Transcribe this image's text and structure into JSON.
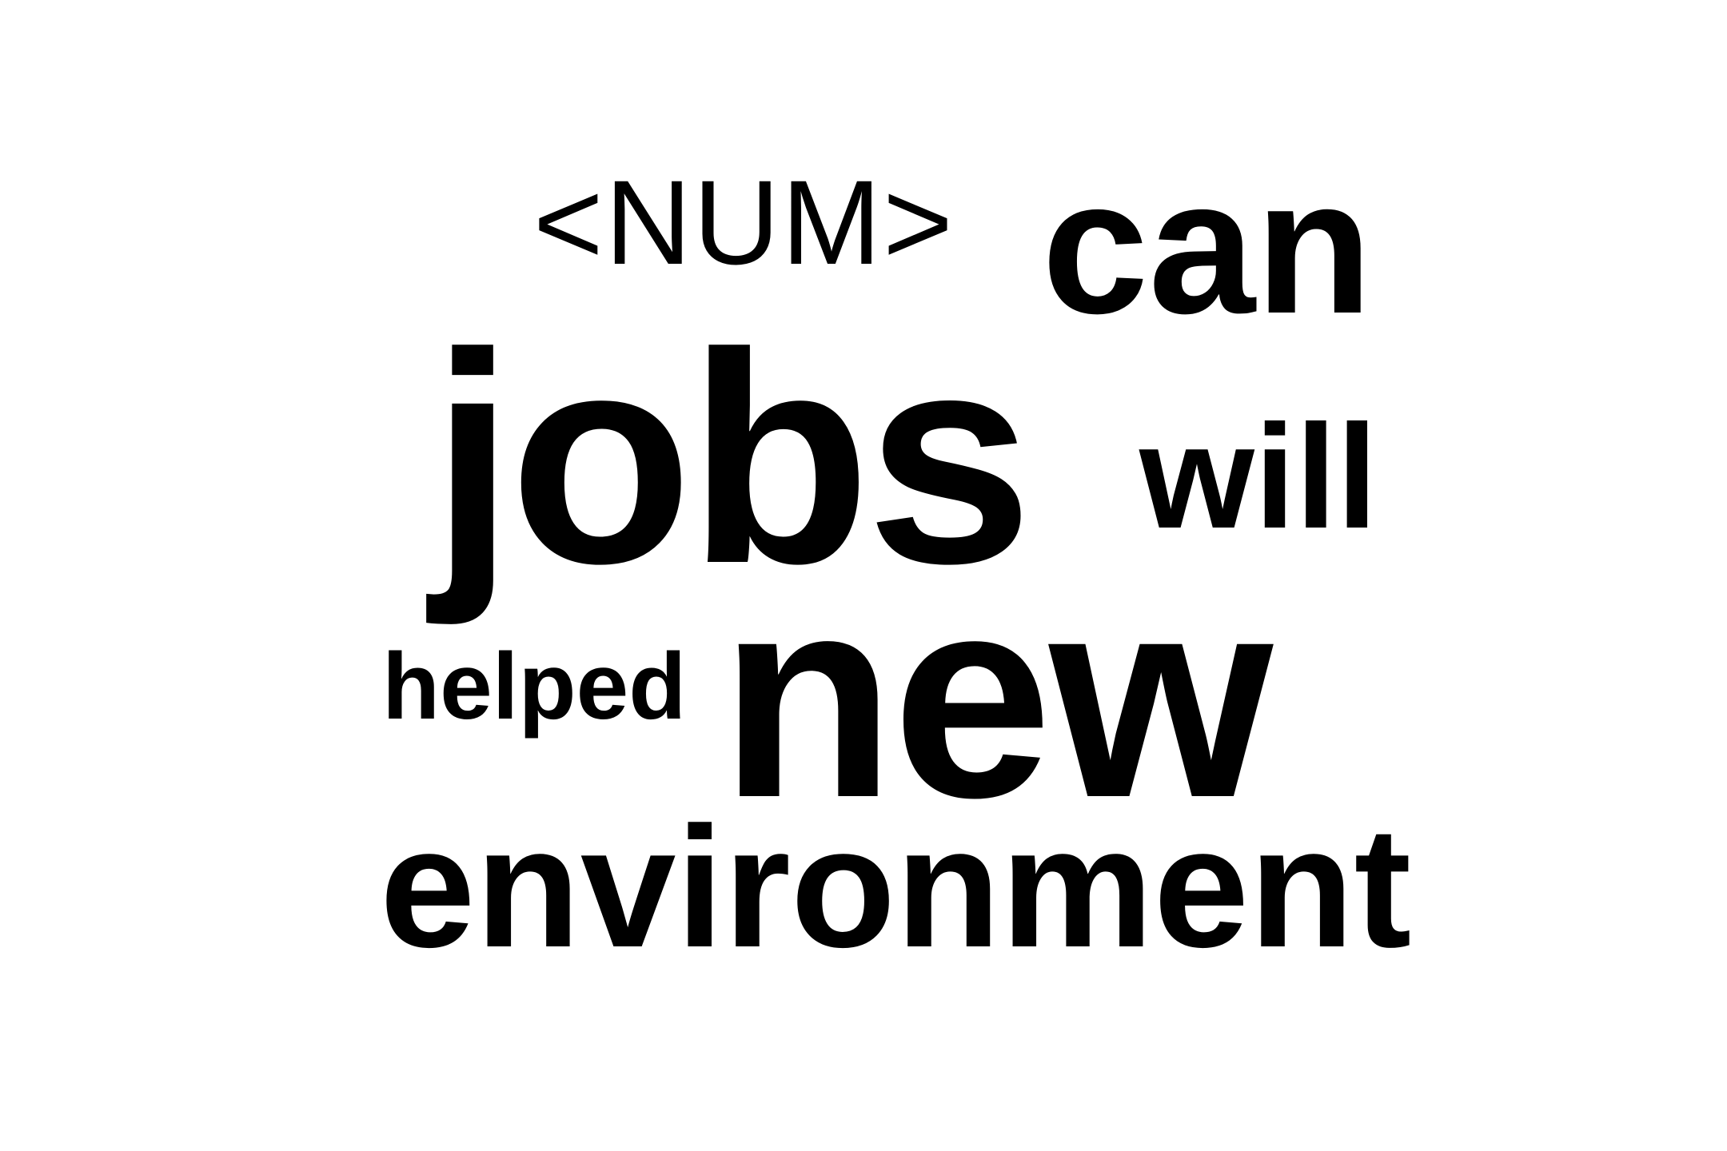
{
  "words": {
    "num": "<NUM>",
    "can": "can",
    "jobs": "jobs",
    "will": "will",
    "helped": "helped",
    "new": "new",
    "environment": "environment"
  },
  "colors": {
    "background": "#ffffff",
    "text": "#000000"
  }
}
